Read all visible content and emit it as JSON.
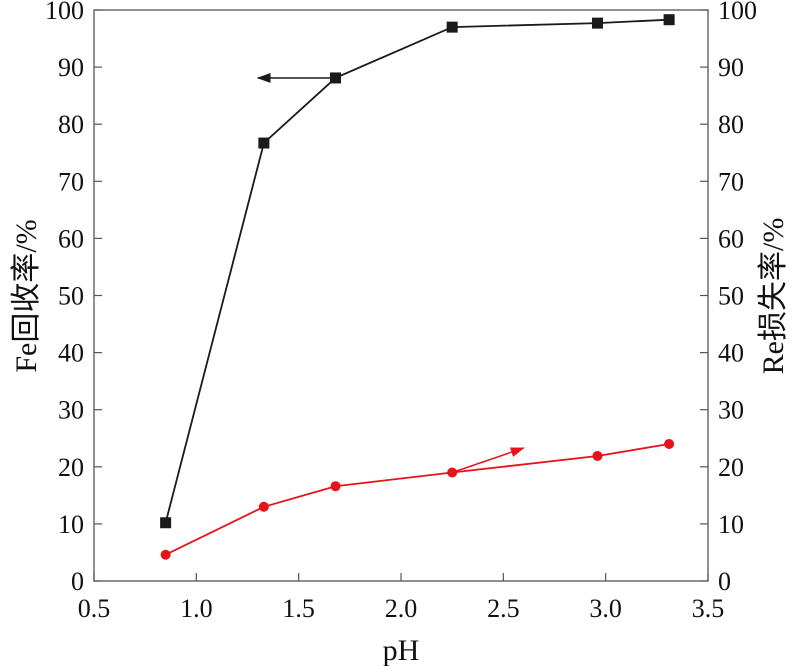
{
  "chart_data": {
    "type": "line",
    "xlabel": "pH",
    "ylabel_left": "Fe回收率/%",
    "ylabel_right": "Re损失率/%",
    "xlim": [
      0.5,
      3.5
    ],
    "ylim_left": [
      0,
      100
    ],
    "ylim_right": [
      0,
      100
    ],
    "x_ticks": [
      "0.5",
      "1.0",
      "1.5",
      "2.0",
      "2.5",
      "3.0",
      "3.5"
    ],
    "y_ticks_left": [
      "0",
      "10",
      "20",
      "30",
      "40",
      "50",
      "60",
      "70",
      "80",
      "90",
      "100"
    ],
    "y_ticks_right": [
      "0",
      "10",
      "20",
      "30",
      "40",
      "50",
      "60",
      "70",
      "80",
      "90",
      "100"
    ],
    "grid": false,
    "legend": "none",
    "series": [
      {
        "axis": "left",
        "color": "#1a1a1a",
        "marker": "square",
        "x": [
          0.85,
          1.33,
          1.68,
          2.25,
          2.96,
          3.31
        ],
        "y": [
          10.2,
          76.7,
          88.1,
          97.0,
          97.7,
          98.3
        ],
        "pointer": {
          "from": [
            1.68,
            88.1
          ],
          "to": [
            1.3,
            88.1
          ]
        }
      },
      {
        "axis": "right",
        "color": "#e8121b",
        "marker": "circle",
        "x": [
          0.85,
          1.33,
          1.68,
          2.25,
          2.96,
          3.31
        ],
        "y": [
          4.6,
          13.0,
          16.6,
          19.0,
          21.9,
          24.0
        ],
        "pointer": {
          "from": [
            2.25,
            19.0
          ],
          "to": [
            2.6,
            23.3
          ]
        }
      }
    ]
  }
}
